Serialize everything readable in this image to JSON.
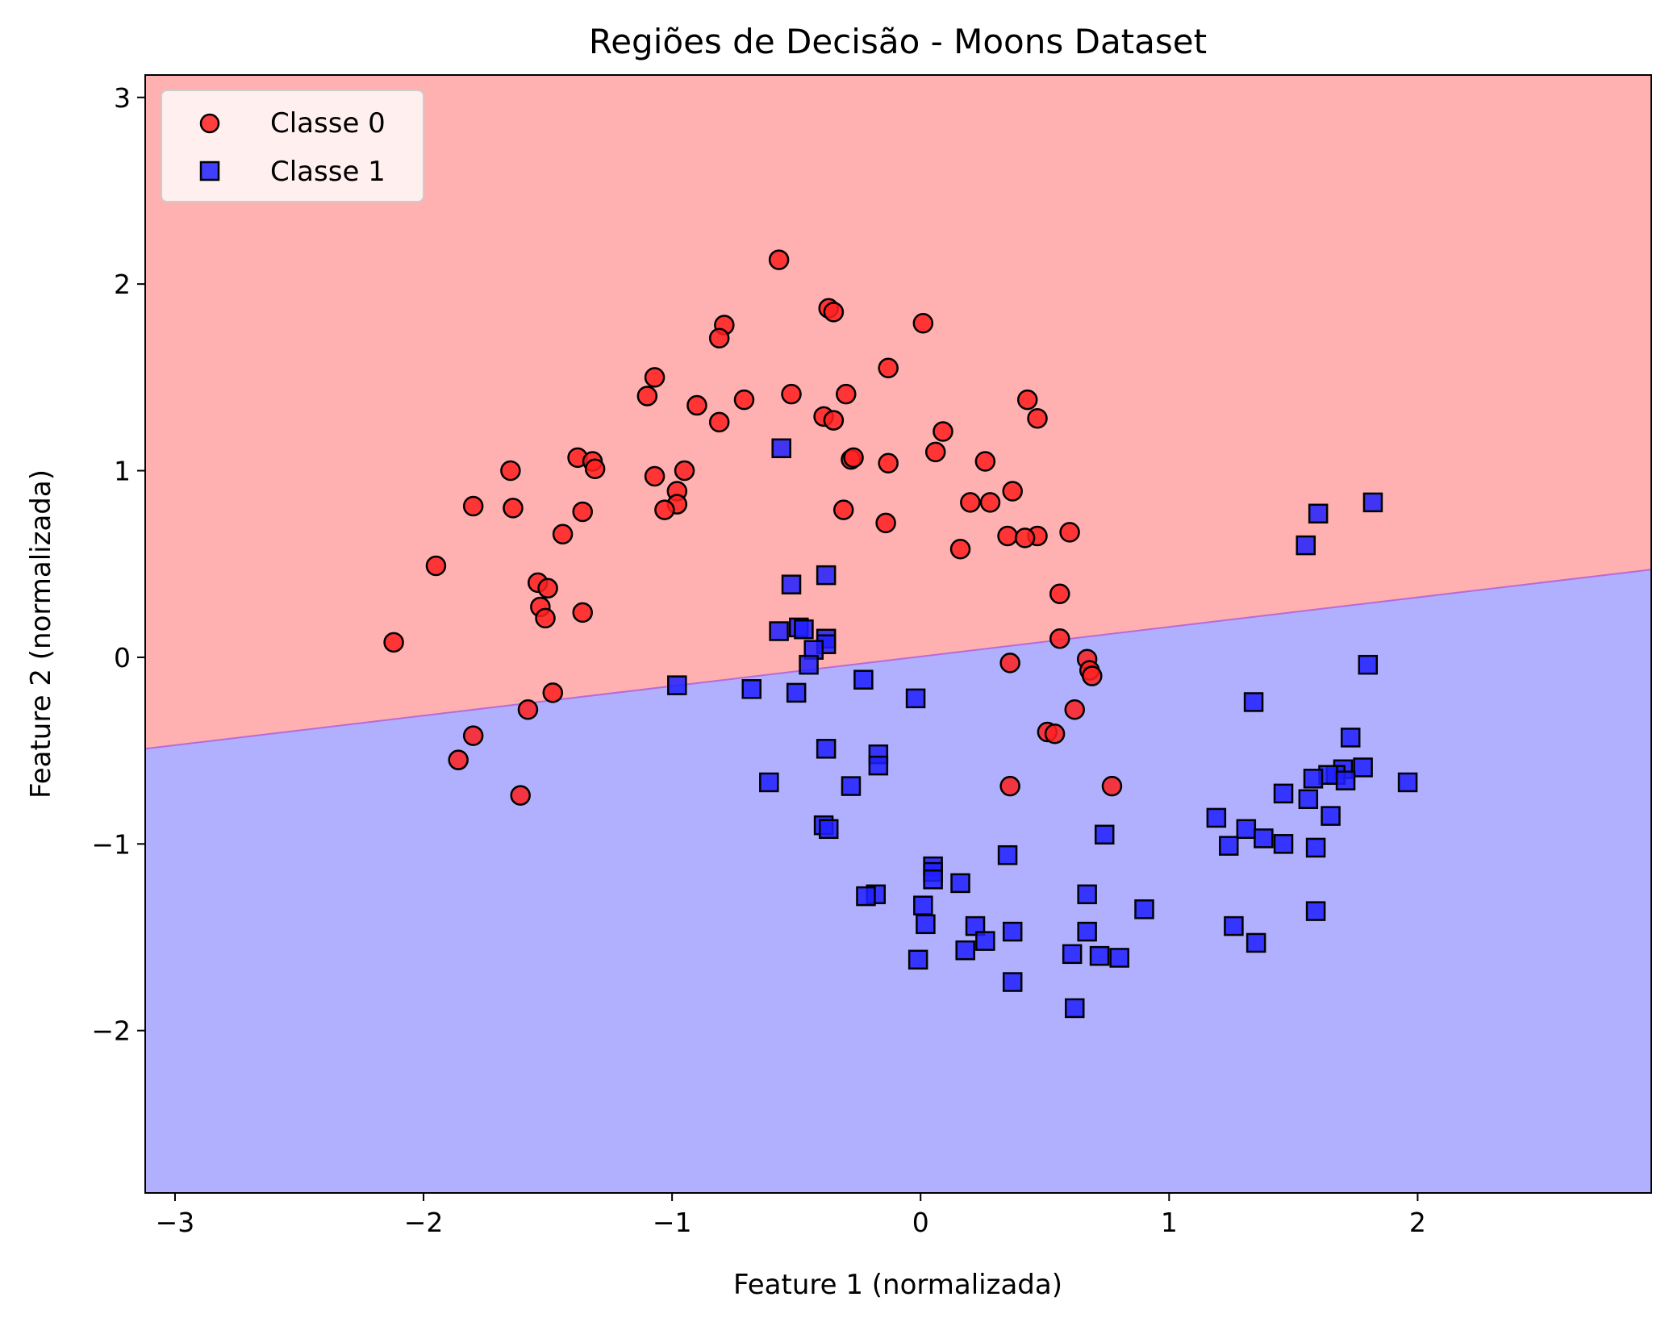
{
  "chart_data": {
    "type": "scatter",
    "title": "Regiões de Decisão - Moons Dataset",
    "xlabel": "Feature 1 (normalizada)",
    "ylabel": "Feature 2 (normalizada)",
    "xlim": [
      -3.12,
      2.94
    ],
    "ylim": [
      -2.87,
      3.12
    ],
    "xticks": [
      -3,
      -2,
      -1,
      0,
      1,
      2
    ],
    "yticks": [
      -2,
      -1,
      0,
      1,
      2,
      3
    ],
    "tick_labels_x": [
      "−3",
      "−2",
      "−1",
      "0",
      "1",
      "2"
    ],
    "tick_labels_y": [
      "−2",
      "−1",
      "0",
      "1",
      "2",
      "3"
    ],
    "grid": false,
    "legend_position": "top-left",
    "decision_boundary": {
      "x": [
        -3.12,
        2.94
      ],
      "y": [
        -0.49,
        0.47
      ]
    },
    "regions": [
      {
        "name": "Classe 0",
        "color": "#ffb0b0",
        "side": "above"
      },
      {
        "name": "Classe 1",
        "color": "#b0b0ff",
        "side": "below"
      }
    ],
    "series": [
      {
        "name": "Classe 0",
        "marker": "circle",
        "color": "#ff2020",
        "points": [
          [
            -0.57,
            2.13
          ],
          [
            -0.37,
            1.87
          ],
          [
            -0.35,
            1.85
          ],
          [
            0.01,
            1.79
          ],
          [
            -0.79,
            1.78
          ],
          [
            -0.81,
            1.71
          ],
          [
            -0.13,
            1.55
          ],
          [
            -1.07,
            1.5
          ],
          [
            -0.52,
            1.41
          ],
          [
            -0.3,
            1.41
          ],
          [
            -1.1,
            1.4
          ],
          [
            0.43,
            1.38
          ],
          [
            -0.71,
            1.38
          ],
          [
            -0.9,
            1.35
          ],
          [
            -0.39,
            1.29
          ],
          [
            0.47,
            1.28
          ],
          [
            -0.35,
            1.27
          ],
          [
            -0.81,
            1.26
          ],
          [
            0.09,
            1.21
          ],
          [
            0.06,
            1.1
          ],
          [
            -1.38,
            1.07
          ],
          [
            -1.32,
            1.05
          ],
          [
            -0.13,
            1.04
          ],
          [
            -0.28,
            1.06
          ],
          [
            -0.27,
            1.07
          ],
          [
            0.26,
            1.05
          ],
          [
            -1.31,
            1.01
          ],
          [
            -1.65,
            1.0
          ],
          [
            -0.95,
            1.0
          ],
          [
            -1.07,
            0.97
          ],
          [
            -0.98,
            0.89
          ],
          [
            0.37,
            0.89
          ],
          [
            0.2,
            0.83
          ],
          [
            0.28,
            0.83
          ],
          [
            -0.98,
            0.82
          ],
          [
            -1.8,
            0.81
          ],
          [
            -1.64,
            0.8
          ],
          [
            -1.03,
            0.79
          ],
          [
            -1.36,
            0.78
          ],
          [
            -0.31,
            0.79
          ],
          [
            -0.14,
            0.72
          ],
          [
            0.6,
            0.67
          ],
          [
            -1.44,
            0.66
          ],
          [
            0.35,
            0.65
          ],
          [
            0.47,
            0.65
          ],
          [
            0.42,
            0.64
          ],
          [
            0.16,
            0.58
          ],
          [
            -1.95,
            0.49
          ],
          [
            -1.54,
            0.4
          ],
          [
            -1.5,
            0.37
          ],
          [
            0.56,
            0.34
          ],
          [
            -1.53,
            0.27
          ],
          [
            -1.36,
            0.24
          ],
          [
            -1.51,
            0.21
          ],
          [
            0.56,
            0.1
          ],
          [
            -2.12,
            0.08
          ],
          [
            0.67,
            -0.01
          ],
          [
            0.36,
            -0.03
          ],
          [
            0.68,
            -0.07
          ],
          [
            0.69,
            -0.1
          ],
          [
            -1.48,
            -0.19
          ],
          [
            -1.58,
            -0.28
          ],
          [
            0.62,
            -0.28
          ],
          [
            0.51,
            -0.4
          ],
          [
            0.54,
            -0.41
          ],
          [
            -1.8,
            -0.42
          ],
          [
            -1.86,
            -0.55
          ],
          [
            0.36,
            -0.69
          ],
          [
            0.77,
            -0.69
          ],
          [
            -1.61,
            -0.74
          ]
        ]
      },
      {
        "name": "Classe 1",
        "marker": "square",
        "color": "#2020ff",
        "points": [
          [
            -0.56,
            1.12
          ],
          [
            1.82,
            0.83
          ],
          [
            1.6,
            0.77
          ],
          [
            1.55,
            0.6
          ],
          [
            -0.38,
            0.44
          ],
          [
            -0.52,
            0.39
          ],
          [
            -0.49,
            0.16
          ],
          [
            -0.47,
            0.15
          ],
          [
            -0.57,
            0.14
          ],
          [
            -0.38,
            0.1
          ],
          [
            -0.38,
            0.07
          ],
          [
            -0.43,
            0.04
          ],
          [
            -0.45,
            -0.04
          ],
          [
            1.8,
            -0.04
          ],
          [
            -0.23,
            -0.12
          ],
          [
            -0.98,
            -0.15
          ],
          [
            -0.68,
            -0.17
          ],
          [
            -0.5,
            -0.19
          ],
          [
            -0.02,
            -0.22
          ],
          [
            1.34,
            -0.24
          ],
          [
            1.73,
            -0.43
          ],
          [
            -0.38,
            -0.49
          ],
          [
            -0.17,
            -0.52
          ],
          [
            -0.17,
            -0.58
          ],
          [
            1.78,
            -0.59
          ],
          [
            1.7,
            -0.6
          ],
          [
            1.67,
            -0.63
          ],
          [
            1.64,
            -0.63
          ],
          [
            1.58,
            -0.65
          ],
          [
            1.71,
            -0.66
          ],
          [
            1.96,
            -0.67
          ],
          [
            -0.61,
            -0.67
          ],
          [
            -0.28,
            -0.69
          ],
          [
            1.46,
            -0.73
          ],
          [
            1.56,
            -0.76
          ],
          [
            1.65,
            -0.85
          ],
          [
            1.19,
            -0.86
          ],
          [
            -0.39,
            -0.9
          ],
          [
            -0.37,
            -0.92
          ],
          [
            1.31,
            -0.92
          ],
          [
            0.74,
            -0.95
          ],
          [
            1.38,
            -0.97
          ],
          [
            1.24,
            -1.01
          ],
          [
            1.46,
            -1.0
          ],
          [
            1.59,
            -1.02
          ],
          [
            0.35,
            -1.06
          ],
          [
            0.05,
            -1.12
          ],
          [
            0.05,
            -1.15
          ],
          [
            0.05,
            -1.19
          ],
          [
            0.16,
            -1.21
          ],
          [
            -0.18,
            -1.27
          ],
          [
            -0.22,
            -1.28
          ],
          [
            0.67,
            -1.27
          ],
          [
            0.01,
            -1.33
          ],
          [
            0.9,
            -1.35
          ],
          [
            1.59,
            -1.36
          ],
          [
            0.02,
            -1.43
          ],
          [
            0.22,
            -1.44
          ],
          [
            1.26,
            -1.44
          ],
          [
            0.67,
            -1.47
          ],
          [
            0.37,
            -1.47
          ],
          [
            0.26,
            -1.52
          ],
          [
            1.35,
            -1.53
          ],
          [
            0.18,
            -1.57
          ],
          [
            0.61,
            -1.59
          ],
          [
            0.72,
            -1.6
          ],
          [
            0.8,
            -1.61
          ],
          [
            -0.01,
            -1.62
          ],
          [
            0.37,
            -1.74
          ],
          [
            0.62,
            -1.88
          ]
        ]
      }
    ]
  }
}
